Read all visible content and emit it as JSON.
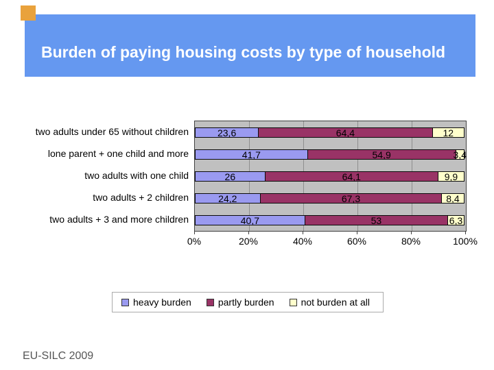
{
  "slide": {
    "title": "Burden of paying housing costs by type of household",
    "footer": "EU-SILC 2009",
    "colors": {
      "title_bar": "#6598F0",
      "title_text": "#FFFFFF",
      "accent_square": "#E9A23C"
    }
  },
  "chart_data": {
    "type": "bar",
    "orientation": "horizontal",
    "stacked": true,
    "title": "",
    "xlabel": "",
    "ylabel": "",
    "categories": [
      "two adults under 65 without children",
      "lone parent + one child and more",
      "two adults  with one child",
      "two adults + 2 children",
      "two adults + 3 and more children"
    ],
    "series": [
      {
        "name": "heavy burden",
        "color": "#9A9AF0",
        "values": [
          23.6,
          41.7,
          26,
          24.2,
          40.7
        ],
        "display_labels": [
          "23,6",
          "41,7",
          "26",
          "24,2",
          "40,7"
        ]
      },
      {
        "name": "partly burden",
        "color": "#993366",
        "values": [
          64.4,
          54.9,
          64.1,
          67.3,
          53
        ],
        "display_labels": [
          "64,4",
          "54,9",
          "64,1",
          "67,3",
          "53"
        ]
      },
      {
        "name": "not burden at all",
        "color": "#FFFFCC",
        "values": [
          12,
          3.4,
          9.9,
          8.4,
          6.3
        ],
        "display_labels": [
          "12",
          "3,4",
          "9,9",
          "8,4",
          "6,3"
        ]
      }
    ],
    "x_axis": {
      "min": 0,
      "max": 100,
      "tick_step": 20,
      "tick_labels": [
        "0%",
        "20%",
        "40%",
        "60%",
        "80%",
        "100%"
      ]
    },
    "grid": true,
    "plot_background": "#C0C0C0",
    "gridline_color": "#8E8E8E",
    "legend_position": "bottom"
  }
}
